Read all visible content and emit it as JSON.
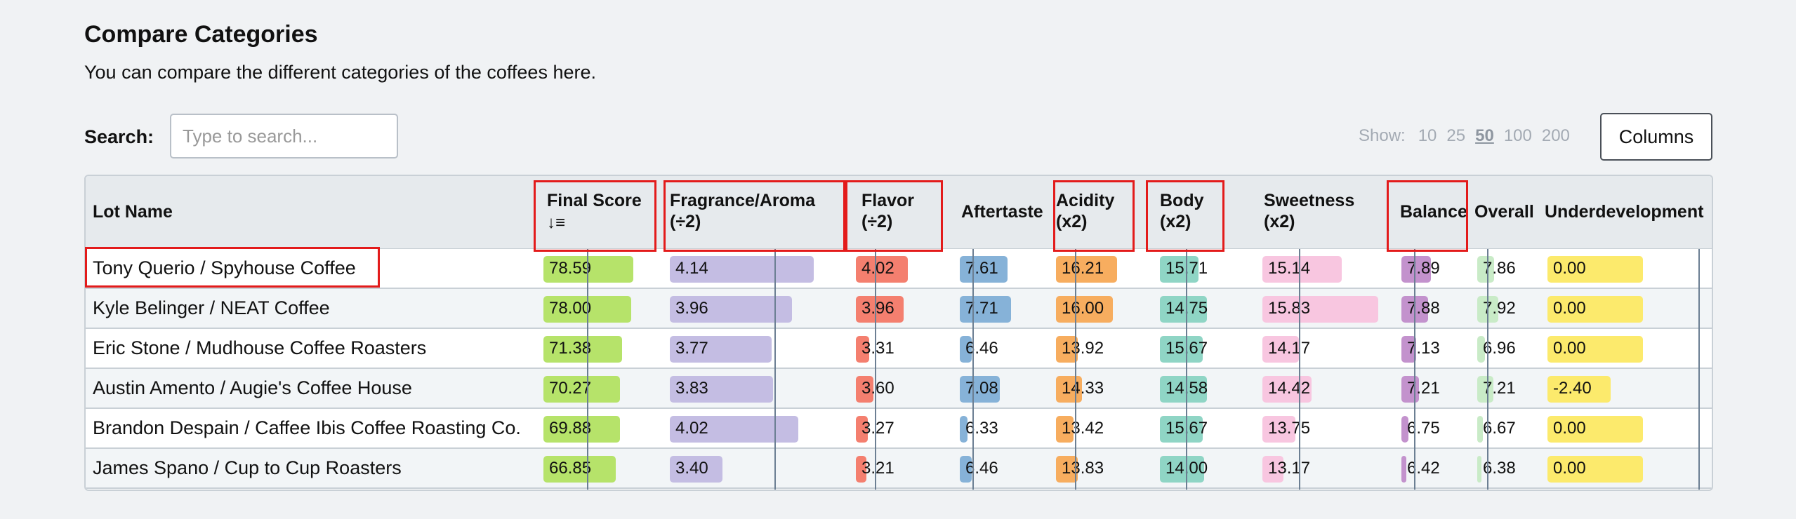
{
  "header": {
    "title": "Compare Categories",
    "subtitle": "You can compare the different categories of the coffees here."
  },
  "search": {
    "label": "Search:",
    "placeholder": "Type to search..."
  },
  "show": {
    "label": "Show:",
    "options": [
      "10",
      "25",
      "50",
      "100",
      "200"
    ],
    "selected": "50"
  },
  "columns_button": "Columns",
  "table": {
    "columns": [
      {
        "key": "lot",
        "label": "Lot Name"
      },
      {
        "key": "final",
        "label": "Final Score",
        "sorted": "desc",
        "color": "#b6e36a",
        "max": 100
      },
      {
        "key": "fragrance",
        "label": "Fragrance/Aroma (÷2)",
        "color": "#c4bde3",
        "max": 5
      },
      {
        "key": "flavor",
        "label": "Flavor (÷2)",
        "color": "#f47f6f",
        "max": 5
      },
      {
        "key": "aftertaste",
        "label": "Aftertaste",
        "color": "#86b2d8",
        "max": 10
      },
      {
        "key": "acidity",
        "label": "Acidity (x2)",
        "color": "#f7ad5f",
        "max": 20
      },
      {
        "key": "body",
        "label": "Body (x2)",
        "color": "#8fd5c5",
        "max": 20
      },
      {
        "key": "sweetness",
        "label": "Sweetness (x2)",
        "color": "#f8c6e0",
        "max": 20
      },
      {
        "key": "balance",
        "label": "Balance",
        "color": "#c392cd",
        "max": 10
      },
      {
        "key": "overall",
        "label": "Overall",
        "color": "#c9ebc7",
        "max": 10
      },
      {
        "key": "underdevelopment",
        "label": "Underdevelopment",
        "color": "#fcea6c",
        "max": 0
      }
    ],
    "rows": [
      {
        "lot": "Tony Querio / Spyhouse Coffee",
        "values": [
          "78.59",
          "4.14",
          "4.02",
          "7.61",
          "16.21",
          "15.71",
          "15.14",
          "7.89",
          "7.86",
          "0.00"
        ]
      },
      {
        "lot": "Kyle Belinger / NEAT Coffee",
        "values": [
          "78.00",
          "3.96",
          "3.96",
          "7.71",
          "16.00",
          "14.75",
          "15.83",
          "7.88",
          "7.92",
          "0.00"
        ]
      },
      {
        "lot": "Eric Stone / Mudhouse Coffee Roasters",
        "values": [
          "71.38",
          "3.77",
          "3.31",
          "6.46",
          "13.92",
          "15.67",
          "14.17",
          "7.13",
          "6.96",
          "0.00"
        ]
      },
      {
        "lot": "Austin Amento / Augie's Coffee House",
        "values": [
          "70.27",
          "3.83",
          "3.60",
          "7.08",
          "14.33",
          "14.58",
          "14.42",
          "7.21",
          "7.21",
          "-2.40"
        ]
      },
      {
        "lot": "Brandon Despain / Caffee Ibis Coffee Roasting Co.",
        "values": [
          "69.88",
          "4.02",
          "3.27",
          "6.33",
          "13.42",
          "15.67",
          "13.75",
          "6.75",
          "6.67",
          "0.00"
        ]
      },
      {
        "lot": "James Spano / Cup to Cup Roasters",
        "values": [
          "66.85",
          "3.40",
          "3.21",
          "6.46",
          "13.83",
          "14.00",
          "13.17",
          "6.42",
          "6.38",
          "0.00"
        ]
      }
    ],
    "bar_fractions": [
      [
        0.82,
        0.85,
        0.6,
        0.6,
        0.7,
        0.45,
        0.65,
        0.5,
        0.32,
        0.6
      ],
      [
        0.8,
        0.72,
        0.55,
        0.65,
        0.65,
        0.55,
        0.95,
        0.45,
        0.4,
        0.6
      ],
      [
        0.72,
        0.6,
        0.15,
        0.15,
        0.25,
        0.5,
        0.3,
        0.25,
        0.15,
        0.6
      ],
      [
        0.7,
        0.61,
        0.2,
        0.5,
        0.3,
        0.55,
        0.4,
        0.3,
        0.3,
        0.4
      ],
      [
        0.7,
        0.76,
        0.14,
        0.1,
        0.2,
        0.5,
        0.27,
        0.12,
        0.1,
        0.6
      ],
      [
        0.66,
        0.31,
        0.12,
        0.15,
        0.25,
        0.52,
        0.17,
        0.08,
        0.07,
        0.6
      ]
    ],
    "highlighted": [
      "final",
      "fragrance",
      "flavor",
      "acidity",
      "body",
      "balance"
    ],
    "highlighted_row": 0
  }
}
